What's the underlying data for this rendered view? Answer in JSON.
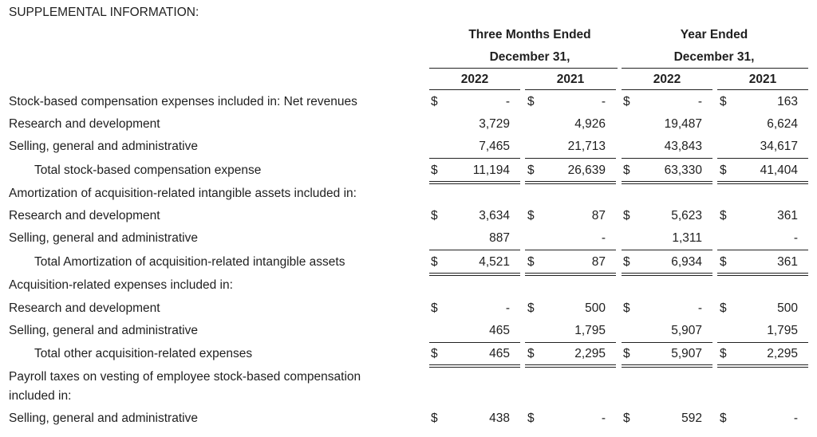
{
  "section_title": "SUPPLEMENTAL INFORMATION:",
  "headers": {
    "group1_line1": "Three Months Ended",
    "group1_line2": "December 31,",
    "group2_line1": "Year Ended",
    "group2_line2": "December 31,",
    "years": [
      "2022",
      "2021",
      "2022",
      "2021"
    ]
  },
  "rows": [
    {
      "label": "Stock-based compensation expenses included in: Net revenues",
      "dollar": true,
      "values": [
        "-",
        "-",
        "-",
        "163"
      ]
    },
    {
      "label": "Research and development",
      "dollar": false,
      "values": [
        "3,729",
        "4,926",
        "19,487",
        "6,624"
      ]
    },
    {
      "label": "Selling, general and administrative",
      "dollar": false,
      "values": [
        "7,465",
        "21,713",
        "43,843",
        "34,617"
      ]
    },
    {
      "label": "Total stock-based compensation expense",
      "dollar": true,
      "values": [
        "11,194",
        "26,639",
        "63,330",
        "41,404"
      ]
    },
    {
      "label": "Amortization of acquisition-related intangible assets included in:"
    },
    {
      "label": "Research and development",
      "dollar": true,
      "values": [
        "3,634",
        "87",
        "5,623",
        "361"
      ]
    },
    {
      "label": "Selling, general and administrative",
      "dollar": false,
      "values": [
        "887",
        "-",
        "1,311",
        "-"
      ]
    },
    {
      "label": "Total Amortization of acquisition-related intangible assets",
      "dollar": true,
      "values": [
        "4,521",
        "87",
        "6,934",
        "361"
      ]
    },
    {
      "label": "Acquisition-related expenses included in:"
    },
    {
      "label": "Research and development",
      "dollar": true,
      "values": [
        "-",
        "500",
        "-",
        "500"
      ]
    },
    {
      "label": "Selling, general and administrative",
      "dollar": false,
      "values": [
        "465",
        "1,795",
        "5,907",
        "1,795"
      ]
    },
    {
      "label": "Total other acquisition-related expenses",
      "dollar": true,
      "values": [
        "465",
        "2,295",
        "5,907",
        "2,295"
      ]
    },
    {
      "label": "Payroll taxes on vesting of employee stock-based compensation"
    },
    {
      "label": "included in:"
    },
    {
      "label": "Selling, general and administrative",
      "dollar": true,
      "values": [
        "438",
        "-",
        "592",
        "-"
      ]
    }
  ],
  "currency_symbol": "$"
}
